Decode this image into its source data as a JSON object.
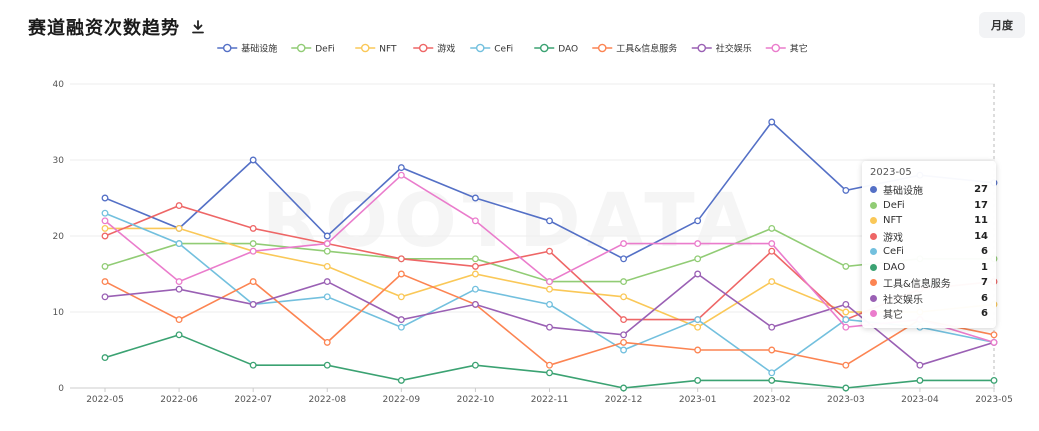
{
  "header": {
    "title": "赛道融资次数趋势",
    "period_button": "月度"
  },
  "watermark": "ROOTDATA",
  "tooltip": {
    "title": "2023-05",
    "rows": [
      {
        "name": "基础设施",
        "value": "27",
        "color": "#5470c6"
      },
      {
        "name": "DeFi",
        "value": "17",
        "color": "#91cc75"
      },
      {
        "name": "NFT",
        "value": "11",
        "color": "#fac858"
      },
      {
        "name": "游戏",
        "value": "14",
        "color": "#ee6666"
      },
      {
        "name": "CeFi",
        "value": "6",
        "color": "#73c0de"
      },
      {
        "name": "DAO",
        "value": "1",
        "color": "#3ba272"
      },
      {
        "name": "工具&信息服务",
        "value": "7",
        "color": "#fc8452"
      },
      {
        "name": "社交娱乐",
        "value": "6",
        "color": "#9a60b4"
      },
      {
        "name": "其它",
        "value": "6",
        "color": "#ea7ccc"
      }
    ]
  },
  "chart_data": {
    "type": "line",
    "title": "赛道融资次数趋势",
    "x": [
      "2022-05",
      "2022-06",
      "2022-07",
      "2022-08",
      "2022-09",
      "2022-10",
      "2022-11",
      "2022-12",
      "2023-01",
      "2023-02",
      "2023-03",
      "2023-04",
      "2023-05"
    ],
    "ylim": [
      0,
      40
    ],
    "yticks": [
      0,
      10,
      20,
      30,
      40
    ],
    "grid": true,
    "legend_position": "top-center",
    "series": [
      {
        "name": "基础设施",
        "color": "#5470c6",
        "values": [
          25,
          21,
          30,
          20,
          29,
          25,
          22,
          17,
          22,
          35,
          26,
          28,
          27
        ]
      },
      {
        "name": "DeFi",
        "color": "#91cc75",
        "values": [
          16,
          19,
          19,
          18,
          17,
          17,
          14,
          14,
          17,
          21,
          16,
          17,
          17
        ]
      },
      {
        "name": "NFT",
        "color": "#fac858",
        "values": [
          21,
          21,
          18,
          16,
          12,
          15,
          13,
          12,
          8,
          14,
          10,
          10,
          11
        ]
      },
      {
        "name": "游戏",
        "color": "#ee6666",
        "values": [
          20,
          24,
          21,
          19,
          17,
          16,
          18,
          9,
          9,
          18,
          9,
          13,
          14
        ]
      },
      {
        "name": "CeFi",
        "color": "#73c0de",
        "values": [
          23,
          19,
          11,
          12,
          8,
          13,
          11,
          5,
          9,
          2,
          9,
          8,
          6
        ]
      },
      {
        "name": "DAO",
        "color": "#3ba272",
        "values": [
          4,
          7,
          3,
          3,
          1,
          3,
          2,
          0,
          1,
          1,
          0,
          1,
          1
        ]
      },
      {
        "name": "工具&信息服务",
        "color": "#fc8452",
        "values": [
          14,
          9,
          14,
          6,
          15,
          11,
          3,
          6,
          5,
          5,
          3,
          9,
          7
        ]
      },
      {
        "name": "社交娱乐",
        "color": "#9a60b4",
        "values": [
          12,
          13,
          11,
          14,
          9,
          11,
          8,
          7,
          15,
          8,
          11,
          3,
          6
        ]
      },
      {
        "name": "其它",
        "color": "#ea7ccc",
        "values": [
          22,
          14,
          18,
          19,
          28,
          22,
          14,
          19,
          19,
          19,
          8,
          9,
          6
        ]
      }
    ]
  }
}
